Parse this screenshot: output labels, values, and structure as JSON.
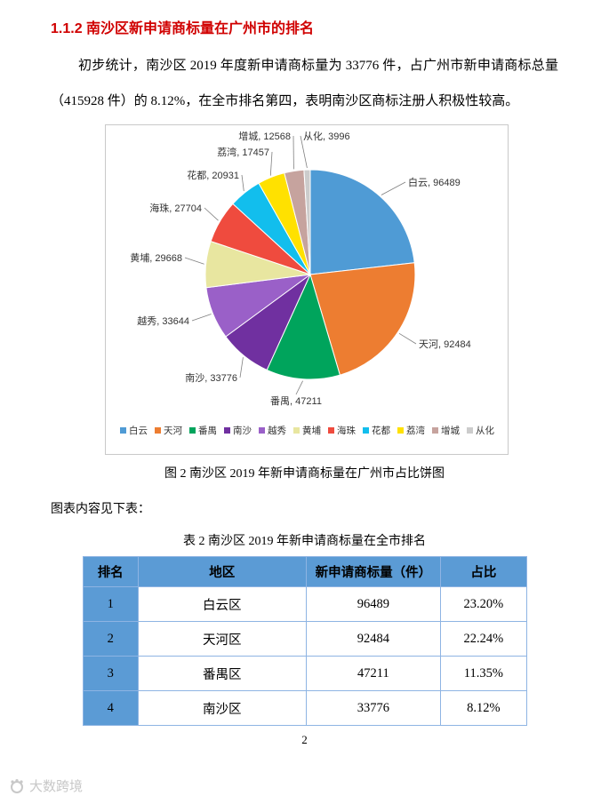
{
  "page": {
    "heading": "1.1.2  南沙区新申请商标量在广州市的排名",
    "paragraph": "初步统计，南沙区 2019 年度新申请商标量为 33776 件，占广州市新申请商标总量（415928 件）的 8.12%，在全市排名第四，表明南沙区商标注册人积极性较高。",
    "chart_caption": "图 2 南沙区 2019 年新申请商标量在广州市占比饼图",
    "table_intro": "图表内容见下表：",
    "table_title": "表 2 南沙区 2019 年新申请商标量在全市排名",
    "page_number": "2",
    "watermark": "大数跨境"
  },
  "chart_data": {
    "type": "pie",
    "title": "",
    "categories": [
      "白云",
      "天河",
      "番禺",
      "南沙",
      "越秀",
      "黄埔",
      "海珠",
      "花都",
      "荔湾",
      "增城",
      "从化"
    ],
    "values": [
      96489,
      92484,
      47211,
      33776,
      33644,
      29668,
      27704,
      20931,
      17457,
      12568,
      3996
    ],
    "labels": [
      "白云, 96489",
      "天河, 92484",
      "番禺, 47211",
      "南沙, 33776",
      "越秀, 33644",
      "黄埔, 29668",
      "海珠, 27704",
      "花都, 20931",
      "荔湾, 17457",
      "增城, 12568",
      "从化, 3996"
    ],
    "colors": [
      "#4f9bd5",
      "#ed7d31",
      "#00a45c",
      "#7030a0",
      "#9a60c8",
      "#e8e6a0",
      "#ef4b3e",
      "#12beed",
      "#ffe100",
      "#c6a39e",
      "#cccccc"
    ],
    "total": 415928,
    "legend_position": "bottom",
    "start_angle_deg": 0,
    "direction": "clockwise"
  },
  "table": {
    "headers": [
      "排名",
      "地区",
      "新申请商标量（件）",
      "占比"
    ],
    "rows": [
      [
        "1",
        "白云区",
        "96489",
        "23.20%"
      ],
      [
        "2",
        "天河区",
        "92484",
        "22.24%"
      ],
      [
        "3",
        "番禺区",
        "47211",
        "11.35%"
      ],
      [
        "4",
        "南沙区",
        "33776",
        "8.12%"
      ]
    ]
  },
  "colors": {
    "heading_red": "#d00000",
    "table_header_bg": "#5b9bd5",
    "table_border": "#8eb4e3"
  }
}
